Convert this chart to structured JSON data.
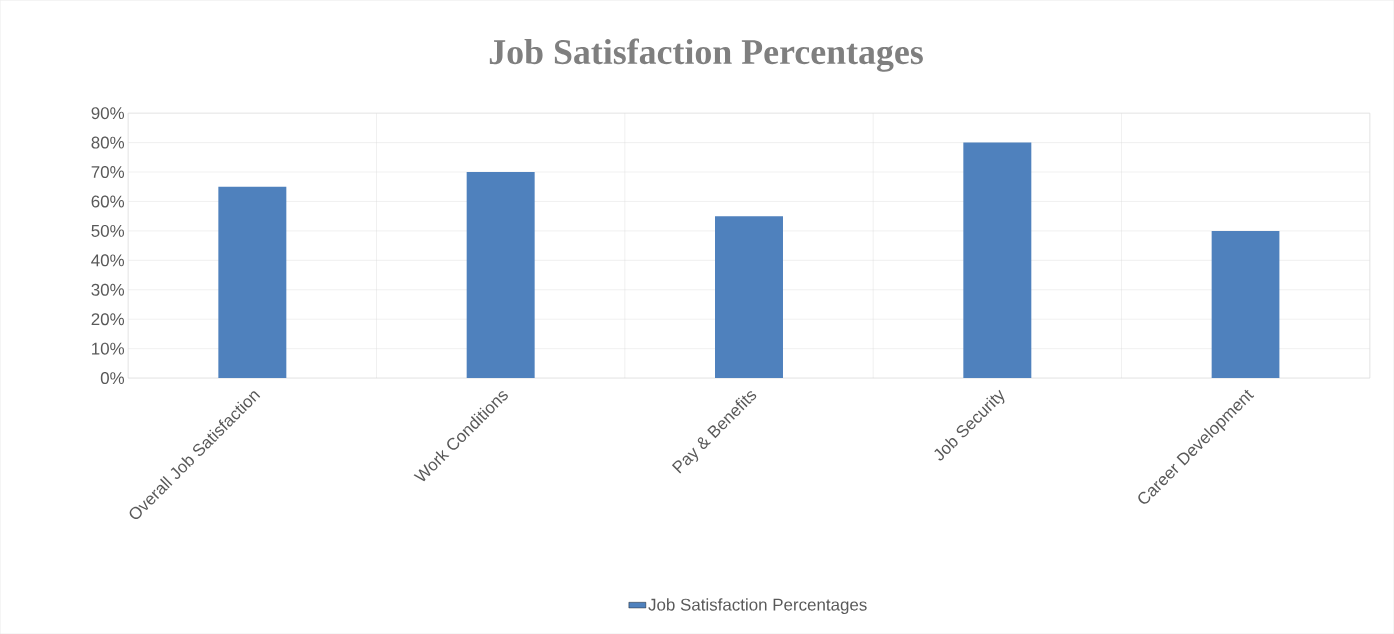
{
  "chart_data": {
    "type": "bar",
    "title": "Job Satisfaction Percentages",
    "categories": [
      "Overall Job Satisfaction",
      "Work Conditions",
      "Pay & Benefits",
      "Job Security",
      "Career Development"
    ],
    "series": [
      {
        "name": "Job Satisfaction Percentages",
        "color": "#4f81bd",
        "values": [
          65,
          70,
          55,
          80,
          50
        ]
      }
    ],
    "ylim": [
      0,
      90
    ],
    "yticks": [
      {
        "value": 0,
        "label": "0%"
      },
      {
        "value": 10,
        "label": "10%"
      },
      {
        "value": 20,
        "label": "20%"
      },
      {
        "value": 30,
        "label": "30%"
      },
      {
        "value": 40,
        "label": "40%"
      },
      {
        "value": 50,
        "label": "50%"
      },
      {
        "value": 60,
        "label": "60%"
      },
      {
        "value": 70,
        "label": "70%"
      },
      {
        "value": 80,
        "label": "80%"
      },
      {
        "value": 90,
        "label": "90%"
      }
    ],
    "grid": true,
    "legend": "bottom"
  }
}
